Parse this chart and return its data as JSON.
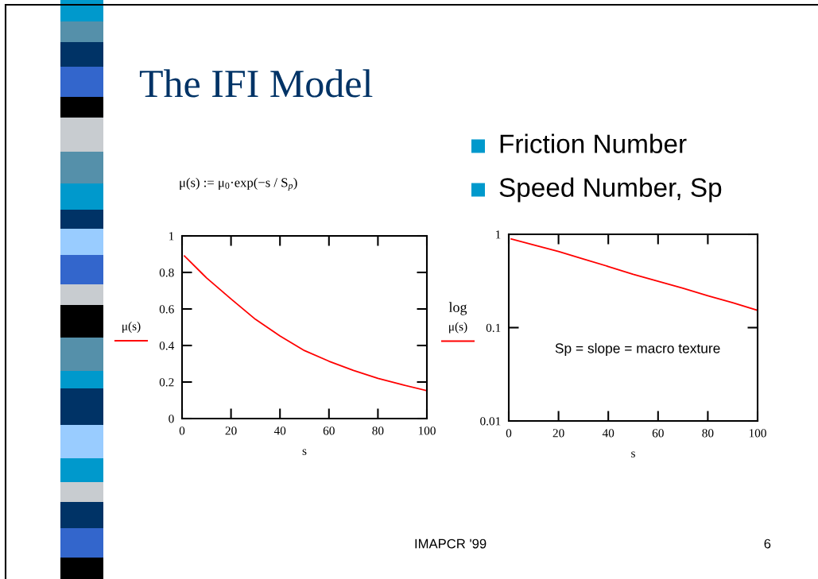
{
  "chart_data": [
    {
      "type": "line",
      "title": "The IFI Model",
      "xlabel": "s",
      "x": [
        1,
        10,
        20,
        30,
        40,
        50,
        60,
        70,
        80,
        90,
        100
      ],
      "series": [
        {
          "name": "μ(s)",
          "color": "#ff0000",
          "values": [
            0.89,
            0.77,
            0.655,
            0.543,
            0.452,
            0.372,
            0.314,
            0.264,
            0.22,
            0.185,
            0.153
          ]
        }
      ],
      "xlim": [
        0,
        100
      ],
      "xticks": [
        0,
        20,
        40,
        60,
        80,
        100
      ],
      "ylim": [
        0,
        1
      ],
      "yticks": [
        0,
        0.2,
        0.4,
        0.6,
        0.8,
        1
      ],
      "legend": "left",
      "annotations": [
        "μ(s) := μ$_{0}$·exp(−s / S$_{p}$)"
      ]
    },
    {
      "type": "line",
      "xlabel": "s",
      "ylabel": "log",
      "x": [
        1,
        10,
        20,
        30,
        40,
        50,
        60,
        70,
        80,
        90,
        100
      ],
      "series": [
        {
          "name": "μ(s)",
          "color": "#ff0000",
          "values": [
            0.89,
            0.77,
            0.655,
            0.543,
            0.452,
            0.372,
            0.314,
            0.264,
            0.22,
            0.185,
            0.153
          ]
        }
      ],
      "log": "y",
      "xlim": [
        0,
        100
      ],
      "xticks": [
        0,
        20,
        40,
        60,
        80,
        100
      ],
      "ylim": [
        0.01,
        1
      ],
      "yticks": [
        0.01,
        0.1,
        1
      ],
      "legend": "left",
      "annotations": [
        "Sp = slope = macro texture",
        "Friction Number",
        "Speed Number, Sp",
        "IMAPCR '99",
        "6"
      ]
    }
  ]
}
